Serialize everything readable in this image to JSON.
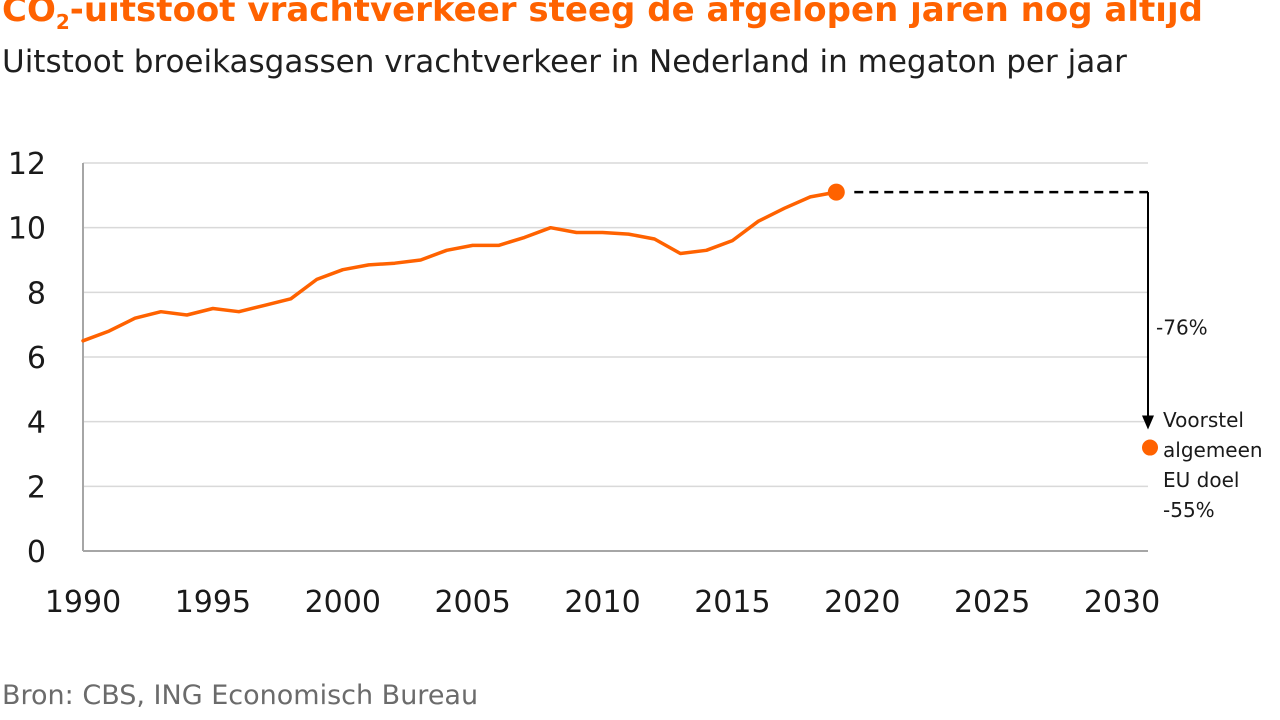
{
  "title": "CO₂-uitstoot vrachtverkeer steeg de afgelopen jaren nog altijd",
  "subtitle": "Uitstoot broeikasgassen vrachtverkeer in Nederland in megaton per jaar",
  "source": "Bron: CBS, ING Economisch Bureau",
  "colors": {
    "series": "#ff6200",
    "axis": "#a6a6a6",
    "grid": "#d9d9d9",
    "text": "#1a1a1a"
  },
  "chart_data": {
    "type": "line",
    "title": "CO₂-uitstoot vrachtverkeer steeg de afgelopen jaren nog altijd",
    "subtitle": "Uitstoot broeikasgassen vrachtverkeer in Nederland in megaton per jaar",
    "xlabel": "",
    "ylabel": "",
    "xlim": [
      1990,
      2031
    ],
    "ylim": [
      0,
      12
    ],
    "grid": true,
    "x_ticks": [
      "1990",
      "1995",
      "2000",
      "2005",
      "2010",
      "2015",
      "2020",
      "2025",
      "2030"
    ],
    "y_ticks": [
      "0",
      "2",
      "4",
      "6",
      "8",
      "10",
      "12"
    ],
    "series": [
      {
        "x": [
          1990,
          1991,
          1992,
          1993,
          1994,
          1995,
          1996,
          1997,
          1998,
          1999,
          2000,
          2001,
          2002,
          2003,
          2004,
          2005,
          2006,
          2007,
          2008,
          2009,
          2010,
          2011,
          2012,
          2013,
          2014,
          2015,
          2016,
          2017,
          2018,
          2019
        ],
        "values": [
          6.5,
          6.8,
          7.2,
          7.4,
          7.3,
          7.5,
          7.4,
          7.6,
          7.8,
          8.4,
          8.7,
          8.85,
          8.9,
          9.0,
          9.3,
          9.45,
          9.45,
          9.7,
          10.0,
          9.85,
          9.85,
          9.8,
          9.65,
          9.2,
          9.3,
          9.6,
          10.2,
          10.6,
          10.95,
          11.1
        ]
      }
    ],
    "endpoint": {
      "x": 2019,
      "value": 11.1
    },
    "target": {
      "x": 2031,
      "value": 3.2
    },
    "annotations": {
      "reduction": "-76%",
      "target_label": [
        "Voorstel",
        "algemeen",
        "EU doel",
        "-55%"
      ]
    }
  }
}
